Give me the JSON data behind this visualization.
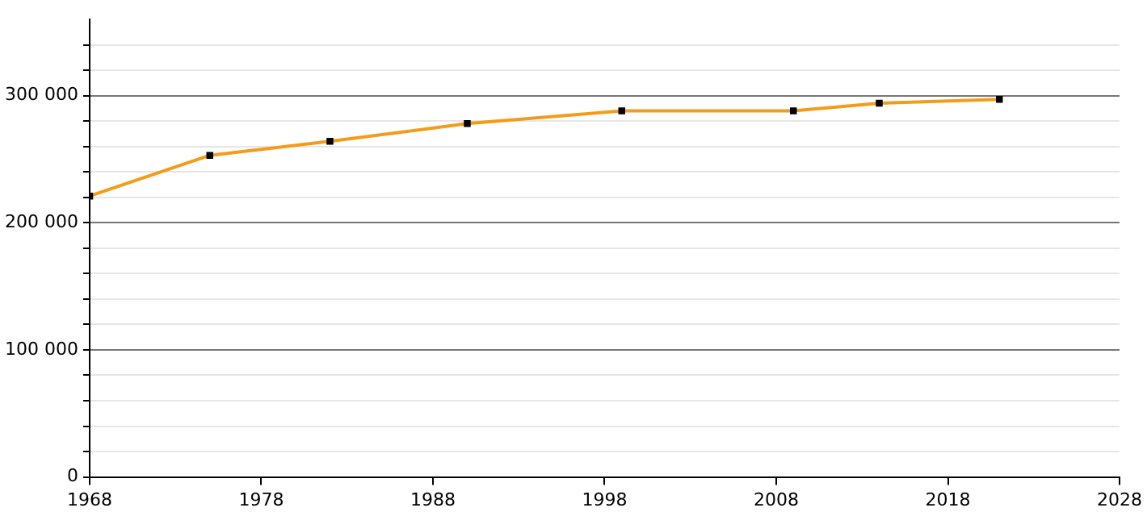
{
  "chart_data": {
    "type": "line",
    "x": [
      1968,
      1975,
      1982,
      1990,
      1999,
      2009,
      2014,
      2021
    ],
    "series": [
      {
        "color": "#f39c1a",
        "values": [
          221000,
          253000,
          264000,
          278000,
          288000,
          288000,
          294000,
          297000
        ]
      }
    ],
    "xlim": [
      1968,
      2028
    ],
    "xticks": [
      1968,
      1978,
      1988,
      1998,
      2008,
      2018,
      2028
    ],
    "ylim": [
      0,
      360000
    ],
    "yticks": [
      0,
      {
        "value": 20000,
        "label": null
      },
      {
        "value": 40000,
        "label": null
      },
      {
        "value": 60000,
        "label": null
      },
      {
        "value": 80000,
        "label": null
      },
      {
        "value": 100000,
        "label": "100 000"
      },
      {
        "value": 120000,
        "label": null
      },
      {
        "value": 140000,
        "label": null
      },
      {
        "value": 160000,
        "label": null
      },
      {
        "value": 180000,
        "label": null
      },
      {
        "value": 200000,
        "label": "200 000"
      },
      {
        "value": 220000,
        "label": null
      },
      {
        "value": 240000,
        "label": null
      },
      {
        "value": 260000,
        "label": null
      },
      {
        "value": 280000,
        "label": null
      },
      {
        "value": 300000,
        "label": "300 000"
      },
      {
        "value": 320000,
        "label": null
      },
      {
        "value": 340000,
        "label": null
      }
    ],
    "grid": "y",
    "marker": "square",
    "line_style": "solid"
  }
}
